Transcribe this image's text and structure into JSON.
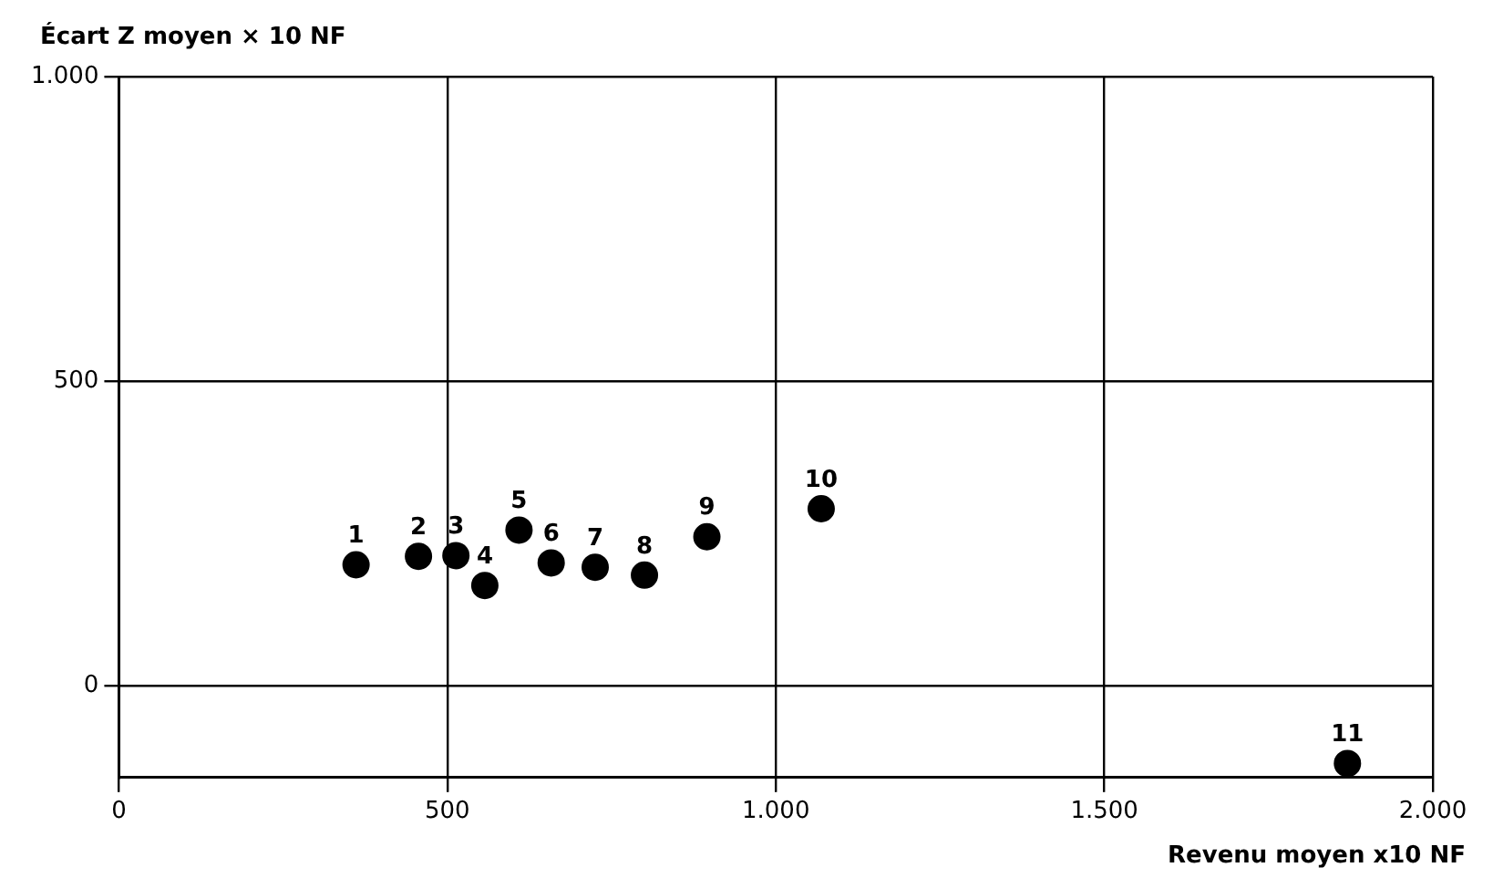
{
  "chart_data": {
    "type": "scatter",
    "ylabel": "Écart Z moyen × 10 NF",
    "xlabel": "Revenu moyen x10 NF",
    "x": [
      361,
      456,
      513,
      557,
      609,
      658,
      725,
      800,
      895,
      1069,
      1870
    ],
    "values": [
      199,
      213,
      214,
      165,
      256,
      202,
      195,
      182,
      245,
      291,
      -127
    ],
    "color": "#000000",
    "marker": "circle",
    "xlim": [
      0,
      2000
    ],
    "xticks": [
      0,
      {
        "value": 500,
        "label": "500"
      },
      {
        "value": 1000,
        "label": "1.000"
      },
      {
        "value": 1500,
        "label": "1.500"
      },
      {
        "value": 2000,
        "label": "2.000"
      }
    ],
    "ylim": [
      -150,
      1000
    ],
    "yticks": [
      0,
      500,
      {
        "value": 1000,
        "label": "1.000"
      }
    ],
    "grid": true,
    "annotations": [
      {
        "text": "1",
        "x": 361,
        "y": 199
      },
      {
        "text": "2",
        "x": 456,
        "y": 213
      },
      {
        "text": "3",
        "x": 513,
        "y": 214
      },
      {
        "text": "4",
        "x": 557,
        "y": 165
      },
      {
        "text": "5",
        "x": 609,
        "y": 256
      },
      {
        "text": "6",
        "x": 658,
        "y": 202
      },
      {
        "text": "7",
        "x": 725,
        "y": 195
      },
      {
        "text": "8",
        "x": 800,
        "y": 182
      },
      {
        "text": "9",
        "x": 895,
        "y": 245
      },
      {
        "text": "10",
        "x": 1069,
        "y": 291
      },
      {
        "text": "11",
        "x": 1870,
        "y": -127
      }
    ]
  }
}
